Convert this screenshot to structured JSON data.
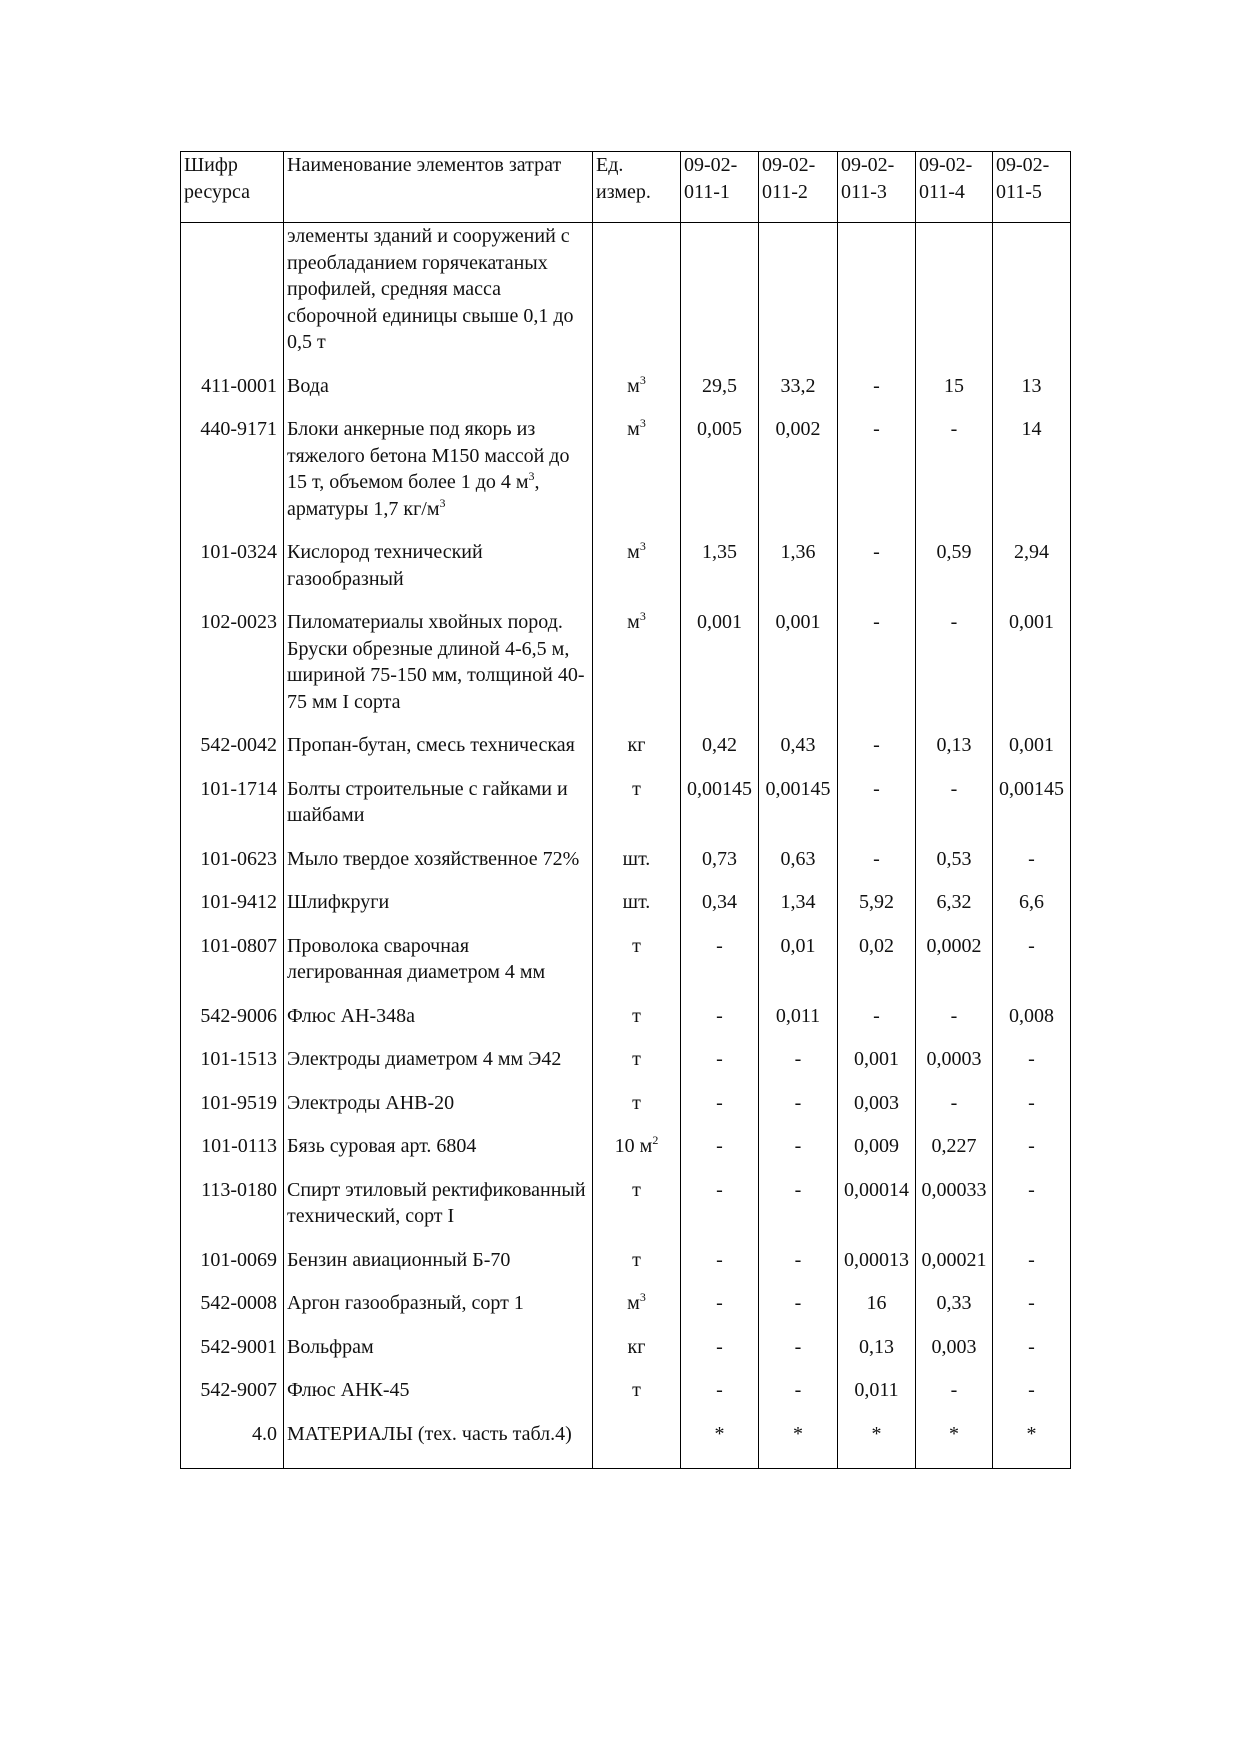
{
  "header": {
    "code": "Шифр ресурса",
    "name": "Наименование элементов затрат",
    "unit": "Ед. измер.",
    "cols": [
      "09-02-011-1",
      "09-02-011-2",
      "09-02-011-3",
      "09-02-011-4",
      "09-02-011-5"
    ]
  },
  "rows": [
    {
      "code": "",
      "name": [
        {
          "t": "элементы зданий и сооружений с преобладанием горячекатаных профилей, средняя масса сборочной единицы свыше 0,1 до 0,5 т"
        }
      ],
      "unit": "",
      "unit_sup": "",
      "values": [
        "",
        "",
        "",
        "",
        ""
      ]
    },
    {
      "code": "411-0001",
      "name": [
        {
          "t": "Вода"
        }
      ],
      "unit": "м",
      "unit_sup": "3",
      "values": [
        "29,5",
        "33,2",
        "-",
        "15",
        "13"
      ]
    },
    {
      "code": "440-9171",
      "name": [
        {
          "t": "Блоки анкерные под якорь из тяжелого бетона М150 массой до 15 т, объемом более 1 до 4 м"
        },
        {
          "sup": "3"
        },
        {
          "t": ", арматуры 1,7 кг/м"
        },
        {
          "sup": "3"
        }
      ],
      "unit": "м",
      "unit_sup": "3",
      "values": [
        "0,005",
        "0,002",
        "-",
        "-",
        "14"
      ]
    },
    {
      "code": "101-0324",
      "name": [
        {
          "t": "Кислород технический газообразный"
        }
      ],
      "unit": "м",
      "unit_sup": "3",
      "values": [
        "1,35",
        "1,36",
        "-",
        "0,59",
        "2,94"
      ]
    },
    {
      "code": "102-0023",
      "name": [
        {
          "t": "Пиломатериалы хвойных пород. Бруски обрезные длиной 4-6,5 м, шириной 75-150 мм, толщиной 40-75 мм I сорта"
        }
      ],
      "unit": "м",
      "unit_sup": "3",
      "values": [
        "0,001",
        "0,001",
        "-",
        "-",
        "0,001"
      ]
    },
    {
      "code": "542-0042",
      "name": [
        {
          "t": "Пропан-бутан, смесь техническая"
        }
      ],
      "unit": "кг",
      "unit_sup": "",
      "values": [
        "0,42",
        "0,43",
        "-",
        "0,13",
        "0,001"
      ]
    },
    {
      "code": "101-1714",
      "name": [
        {
          "t": "Болты строительные с гайками и шайбами"
        }
      ],
      "unit": "т",
      "unit_sup": "",
      "values": [
        "0,00145",
        "0,00145",
        "-",
        "-",
        "0,00145"
      ]
    },
    {
      "code": "101-0623",
      "name": [
        {
          "t": "Мыло твердое хозяйственное 72%"
        }
      ],
      "unit": "шт.",
      "unit_sup": "",
      "values": [
        "0,73",
        "0,63",
        "-",
        "0,53",
        "-"
      ]
    },
    {
      "code": "101-9412",
      "name": [
        {
          "t": "Шлифкруги"
        }
      ],
      "unit": "шт.",
      "unit_sup": "",
      "values": [
        "0,34",
        "1,34",
        "5,92",
        "6,32",
        "6,6"
      ]
    },
    {
      "code": "101-0807",
      "name": [
        {
          "t": "Проволока сварочная легированная диаметром 4 мм"
        }
      ],
      "unit": "т",
      "unit_sup": "",
      "values": [
        "-",
        "0,01",
        "0,02",
        "0,0002",
        "-"
      ]
    },
    {
      "code": "542-9006",
      "name": [
        {
          "t": "Флюс АН-348а"
        }
      ],
      "unit": "т",
      "unit_sup": "",
      "values": [
        "-",
        "0,011",
        "-",
        "-",
        "0,008"
      ]
    },
    {
      "code": "101-1513",
      "name": [
        {
          "t": "Электроды диаметром 4 мм Э42"
        }
      ],
      "unit": "т",
      "unit_sup": "",
      "values": [
        "-",
        "-",
        "0,001",
        "0,0003",
        "-"
      ]
    },
    {
      "code": "101-9519",
      "name": [
        {
          "t": "Электроды АНВ-20"
        }
      ],
      "unit": "т",
      "unit_sup": "",
      "values": [
        "-",
        "-",
        "0,003",
        "-",
        "-"
      ]
    },
    {
      "code": "101-0113",
      "name": [
        {
          "t": "Бязь суровая арт. 6804"
        }
      ],
      "unit": "10 м",
      "unit_sup": "2",
      "values": [
        "-",
        "-",
        "0,009",
        "0,227",
        "-"
      ]
    },
    {
      "code": "113-0180",
      "name": [
        {
          "t": "Спирт этиловый ректификованный технический, сорт I"
        }
      ],
      "unit": "т",
      "unit_sup": "",
      "values": [
        "-",
        "-",
        "0,00014",
        "0,00033",
        "-"
      ]
    },
    {
      "code": "101-0069",
      "name": [
        {
          "t": "Бензин авиационный Б-70"
        }
      ],
      "unit": "т",
      "unit_sup": "",
      "values": [
        "-",
        "-",
        "0,00013",
        "0,00021",
        "-"
      ]
    },
    {
      "code": "542-0008",
      "name": [
        {
          "t": "Аргон газообразный, сорт 1"
        }
      ],
      "unit": "м",
      "unit_sup": "3",
      "values": [
        "-",
        "-",
        "16",
        "0,33",
        "-"
      ]
    },
    {
      "code": "542-9001",
      "name": [
        {
          "t": "Вольфрам"
        }
      ],
      "unit": "кг",
      "unit_sup": "",
      "values": [
        "-",
        "-",
        "0,13",
        "0,003",
        "-"
      ]
    },
    {
      "code": "542-9007",
      "name": [
        {
          "t": "Флюс АНК-45"
        }
      ],
      "unit": "т",
      "unit_sup": "",
      "values": [
        "-",
        "-",
        "0,011",
        "-",
        "-"
      ]
    },
    {
      "code": "4.0",
      "name": [
        {
          "t": "МАТЕРИАЛЫ (тех. часть табл.4)"
        }
      ],
      "unit": "",
      "unit_sup": "",
      "values": [
        "*",
        "*",
        "*",
        "*",
        "*"
      ]
    }
  ]
}
